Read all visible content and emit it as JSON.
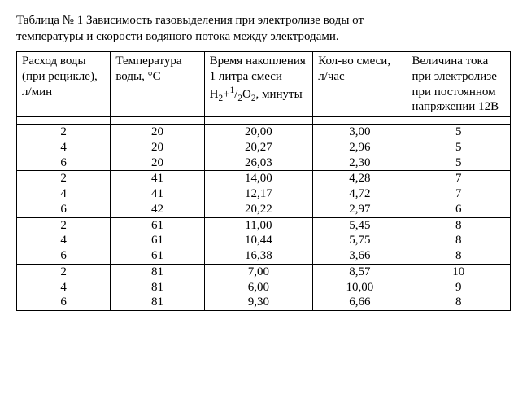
{
  "title_line1": "Таблица № 1  Зависимость газовыделения при электролизе воды от",
  "title_line2": "температуры и скорости водяного потока между электродами.",
  "headers": {
    "c1": "Расход воды (при рецикле), л/мин",
    "c2": "Температура воды,  °С",
    "c3_pre": "Время накопления 1 литра смеси H",
    "c3_post": ", минуты",
    "c4": "Кол-во смеси, л/час",
    "c5": "Величина тока при электролизе при постоянном напряжении 12В"
  },
  "groups": [
    [
      {
        "c1": "2",
        "c2": "20",
        "c3": "20,00",
        "c4": "3,00",
        "c5": "5"
      },
      {
        "c1": "4",
        "c2": "20",
        "c3": "20,27",
        "c4": "2,96",
        "c5": "5"
      },
      {
        "c1": "6",
        "c2": "20",
        "c3": "26,03",
        "c4": "2,30",
        "c5": "5"
      }
    ],
    [
      {
        "c1": "2",
        "c2": "41",
        "c3": "14,00",
        "c4": "4,28",
        "c5": "7"
      },
      {
        "c1": "4",
        "c2": "41",
        "c3": "12,17",
        "c4": "4,72",
        "c5": "7"
      },
      {
        "c1": "6",
        "c2": "42",
        "c3": "20,22",
        "c4": "2,97",
        "c5": "6"
      }
    ],
    [
      {
        "c1": "2",
        "c2": "61",
        "c3": "11,00",
        "c4": "5,45",
        "c5": "8"
      },
      {
        "c1": "4",
        "c2": "61",
        "c3": "10,44",
        "c4": "5,75",
        "c5": "8"
      },
      {
        "c1": "6",
        "c2": "61",
        "c3": "16,38",
        "c4": "3,66",
        "c5": "8"
      }
    ],
    [
      {
        "c1": "2",
        "c2": "81",
        "c3": "7,00",
        "c4": "8,57",
        "c5": "10"
      },
      {
        "c1": "4",
        "c2": "81",
        "c3": "6,00",
        "c4": "10,00",
        "c5": "9"
      },
      {
        "c1": "6",
        "c2": "81",
        "c3": "9,30",
        "c4": "6,66",
        "c5": "8"
      }
    ]
  ]
}
